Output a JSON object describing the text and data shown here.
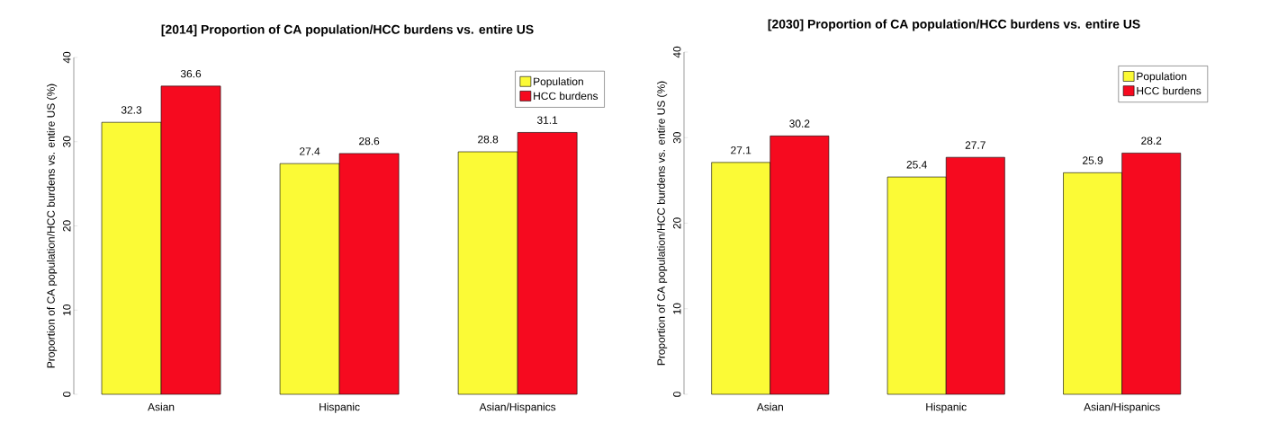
{
  "chart_data": [
    {
      "type": "bar",
      "title": "[2014] Proportion of CA population/HCC burdens vs. entire US",
      "ylabel": "Proportion of CA population/HCC burdens vs. entire US (%)",
      "categories": [
        "Asian",
        "Hispanic",
        "Asian/Hispanics"
      ],
      "series": [
        {
          "name": "Population",
          "color": "#fbfa36",
          "values": [
            32.3,
            27.4,
            28.8
          ]
        },
        {
          "name": "HCC burdens",
          "color": "#f60a1f",
          "values": [
            36.6,
            28.6,
            31.1
          ]
        }
      ],
      "ylim": [
        0,
        40
      ],
      "yticks": [
        0,
        10,
        20,
        30,
        40
      ],
      "legend": "top right",
      "data_labels": true
    },
    {
      "type": "bar",
      "title": "[2030] Proportion of CA population/HCC burdens vs. entire US",
      "ylabel": "Proportion of CA population/HCC burdens vs. entire US (%)",
      "categories": [
        "Asian",
        "Hispanic",
        "Asian/Hispanics"
      ],
      "series": [
        {
          "name": "Population",
          "color": "#fbfa36",
          "values": [
            27.1,
            25.4,
            25.9
          ]
        },
        {
          "name": "HCC burdens",
          "color": "#f60a1f",
          "values": [
            30.2,
            27.7,
            28.2
          ]
        }
      ],
      "ylim": [
        0,
        40
      ],
      "yticks": [
        0,
        10,
        20,
        30,
        40
      ],
      "legend": "top right",
      "data_labels": true
    }
  ]
}
